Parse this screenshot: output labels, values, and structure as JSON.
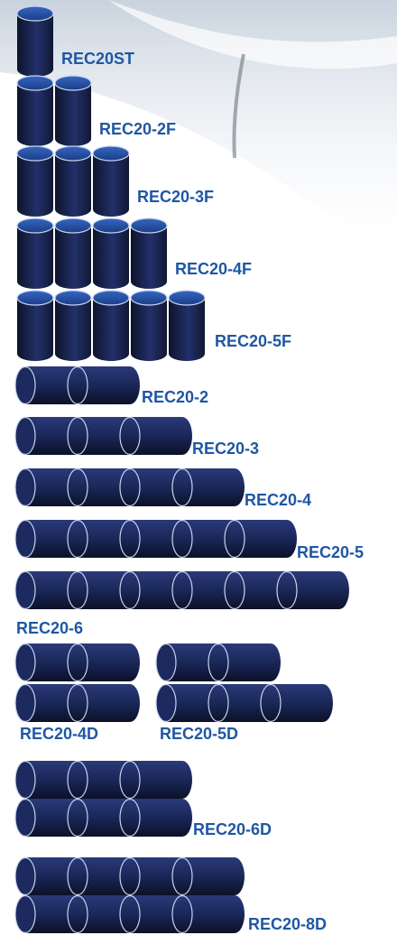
{
  "colors": {
    "label_text": "#1f57a3",
    "cylinder_dark": "#111a36",
    "cylinder_mid": "#1f3270",
    "cylinder_top": "#2451a6",
    "rim": "#c8d4ec"
  },
  "products": [
    {
      "label": "REC20ST",
      "arrangement": "vertical",
      "units": 1
    },
    {
      "label": "REC20-2F",
      "arrangement": "vertical",
      "units": 2
    },
    {
      "label": "REC20-3F",
      "arrangement": "vertical",
      "units": 3
    },
    {
      "label": "REC20-4F",
      "arrangement": "vertical",
      "units": 4
    },
    {
      "label": "REC20-5F",
      "arrangement": "vertical",
      "units": 5
    },
    {
      "label": "REC20-2",
      "arrangement": "horizontal",
      "units": 2
    },
    {
      "label": "REC20-3",
      "arrangement": "horizontal",
      "units": 3
    },
    {
      "label": "REC20-4",
      "arrangement": "horizontal",
      "units": 4
    },
    {
      "label": "REC20-5",
      "arrangement": "horizontal",
      "units": 5
    },
    {
      "label": "REC20-6",
      "arrangement": "horizontal",
      "units": 6
    },
    {
      "label": "REC20-4D",
      "arrangement": "double-horizontal",
      "rows": [
        2,
        2
      ]
    },
    {
      "label": "REC20-5D",
      "arrangement": "double-horizontal",
      "rows": [
        2,
        3
      ]
    },
    {
      "label": "REC20-6D",
      "arrangement": "double-horizontal",
      "rows": [
        3,
        3
      ]
    },
    {
      "label": "REC20-8D",
      "arrangement": "double-horizontal",
      "rows": [
        4,
        4
      ]
    }
  ]
}
